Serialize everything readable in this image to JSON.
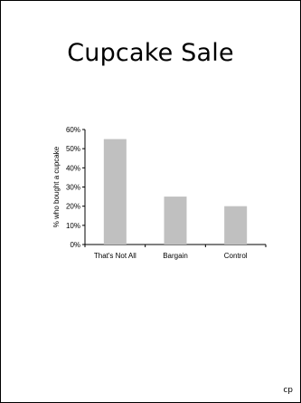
{
  "slide": {
    "title": "Cupcake Sale",
    "footer": "cp"
  },
  "chart_data": {
    "type": "bar",
    "title": "",
    "categories": [
      "That's Not All",
      "Bargain",
      "Control"
    ],
    "values": [
      55,
      25,
      20
    ],
    "ylabel": "% who bought a cupcake",
    "xlabel": "",
    "ylim": [
      0,
      60
    ],
    "yticks": [
      "0%",
      "10%",
      "20%",
      "30%",
      "40%",
      "50%",
      "60%"
    ],
    "grid": false,
    "legend": "none",
    "bar_color": "#c0c0c0"
  }
}
